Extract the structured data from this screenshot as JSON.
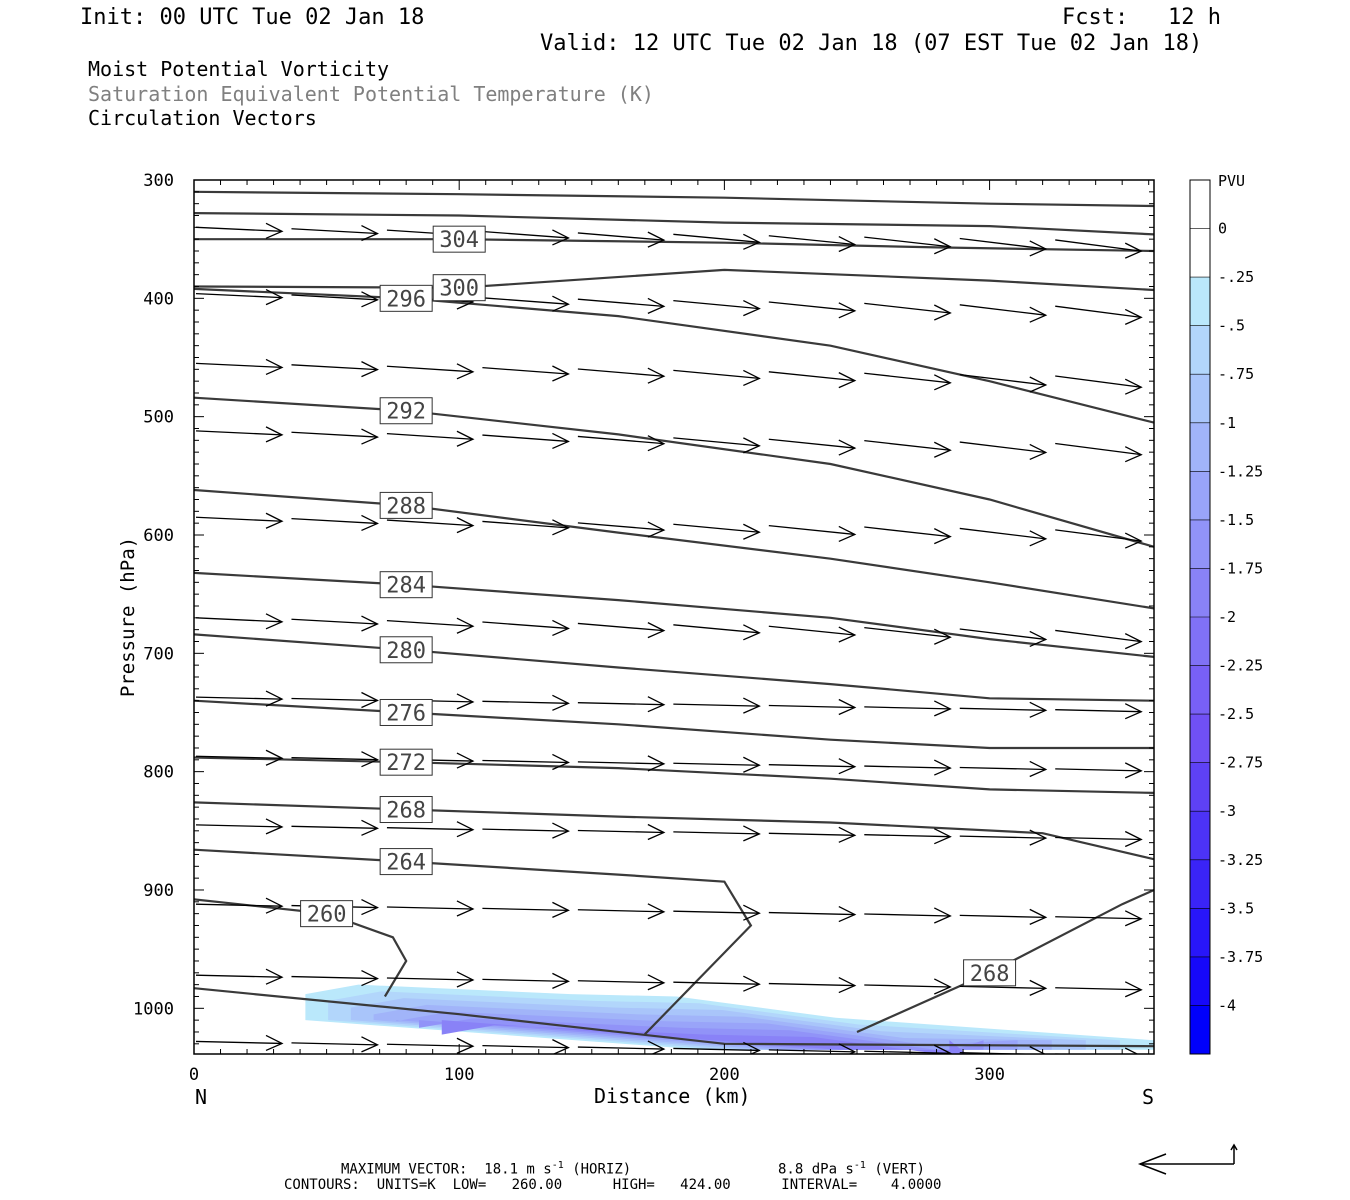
{
  "header": {
    "init": "Init: 00 UTC Tue 02 Jan 18",
    "fcst": "Fcst:   12 h",
    "valid": "Valid: 12 UTC Tue 02 Jan 18 (07 EST Tue 02 Jan 18)",
    "line1": "Moist Potential Vorticity",
    "line2": "Saturation Equivalent Potential Temperature (K)",
    "line3": "Circulation Vectors"
  },
  "footer": {
    "max_vector": "MAXIMUM VECTOR:  18.1 m s",
    "horiz": " (HORIZ)",
    "vert_val": "8.8 dPa s",
    "vert": " (VERT)",
    "sup": "-1",
    "contours": "CONTOURS:  UNITS=K  LOW=   260.00      HIGH=   424.00      INTERVAL=    4.0000"
  },
  "chart_data": {
    "type": "line",
    "xlabel": "Distance (km)",
    "ylabel": "Pressure (hPa)",
    "xlim": [
      0,
      362
    ],
    "ylim": [
      300,
      1038
    ],
    "x_ticks": [
      0,
      100,
      200,
      300
    ],
    "y_ticks": [
      300,
      400,
      500,
      600,
      700,
      800,
      900,
      1000
    ],
    "left_label": "N",
    "right_label": "S",
    "isentropes": [
      {
        "label": "",
        "points": [
          [
            0,
            310
          ],
          [
            100,
            312
          ],
          [
            200,
            315
          ],
          [
            300,
            320
          ],
          [
            362,
            322
          ]
        ]
      },
      {
        "label": "",
        "points": [
          [
            0,
            328
          ],
          [
            100,
            330
          ],
          [
            200,
            336
          ],
          [
            300,
            339
          ],
          [
            362,
            346
          ]
        ]
      },
      {
        "label": "304",
        "points": [
          [
            0,
            350
          ],
          [
            100,
            350
          ],
          [
            200,
            353
          ],
          [
            280,
            357
          ],
          [
            362,
            360
          ]
        ]
      },
      {
        "label": "300",
        "points": [
          [
            0,
            390
          ],
          [
            100,
            391
          ],
          [
            200,
            376
          ],
          [
            300,
            385
          ],
          [
            362,
            393
          ]
        ]
      },
      {
        "label": "296",
        "points": [
          [
            0,
            392
          ],
          [
            80,
            400
          ],
          [
            160,
            415
          ],
          [
            240,
            440
          ],
          [
            300,
            470
          ],
          [
            362,
            505
          ]
        ]
      },
      {
        "label": "292",
        "points": [
          [
            0,
            484
          ],
          [
            80,
            495
          ],
          [
            160,
            515
          ],
          [
            240,
            540
          ],
          [
            300,
            570
          ],
          [
            362,
            610
          ]
        ]
      },
      {
        "label": "288",
        "points": [
          [
            0,
            562
          ],
          [
            80,
            575
          ],
          [
            160,
            598
          ],
          [
            240,
            620
          ],
          [
            300,
            640
          ],
          [
            362,
            662
          ]
        ]
      },
      {
        "label": "284",
        "points": [
          [
            0,
            632
          ],
          [
            80,
            642
          ],
          [
            160,
            655
          ],
          [
            240,
            670
          ],
          [
            300,
            688
          ],
          [
            362,
            703
          ]
        ]
      },
      {
        "label": "280",
        "points": [
          [
            0,
            684
          ],
          [
            80,
            697
          ],
          [
            160,
            712
          ],
          [
            240,
            726
          ],
          [
            300,
            738
          ],
          [
            362,
            740
          ]
        ]
      },
      {
        "label": "276",
        "points": [
          [
            0,
            740
          ],
          [
            80,
            750
          ],
          [
            160,
            760
          ],
          [
            240,
            773
          ],
          [
            300,
            780
          ],
          [
            362,
            780
          ]
        ]
      },
      {
        "label": "272",
        "points": [
          [
            0,
            788
          ],
          [
            80,
            792
          ],
          [
            160,
            797
          ],
          [
            240,
            806
          ],
          [
            300,
            815
          ],
          [
            362,
            818
          ]
        ]
      },
      {
        "label": "268",
        "points": [
          [
            0,
            826
          ],
          [
            80,
            832
          ],
          [
            160,
            838
          ],
          [
            240,
            843
          ],
          [
            320,
            852
          ],
          [
            362,
            874
          ]
        ]
      },
      {
        "label": "264",
        "points": [
          [
            0,
            866
          ],
          [
            80,
            876
          ],
          [
            160,
            887
          ],
          [
            200,
            893
          ],
          [
            210,
            930
          ],
          [
            170,
            1022
          ]
        ]
      },
      {
        "label": "260",
        "points": [
          [
            0,
            908
          ],
          [
            50,
            920
          ],
          [
            75,
            940
          ],
          [
            80,
            960
          ],
          [
            72,
            990
          ]
        ]
      },
      {
        "label": "268",
        "points": [
          [
            250,
            1020
          ],
          [
            300,
            970
          ],
          [
            350,
            912
          ],
          [
            362,
            900
          ]
        ]
      },
      {
        "label": "",
        "points": [
          [
            0,
            983
          ],
          [
            100,
            1005
          ],
          [
            200,
            1030
          ],
          [
            362,
            1032
          ]
        ]
      }
    ],
    "vector_rows_hpa": [
      340,
      396,
      455,
      512,
      585,
      670,
      737,
      787,
      845,
      912,
      972,
      1028
    ],
    "vector_columns_km": [
      0,
      36,
      72,
      108,
      144,
      180,
      216,
      252,
      288,
      324,
      362
    ],
    "mpv_colorbar": {
      "title": "PVU",
      "labels": [
        "0",
        "-.25",
        "-.5",
        "-.75",
        "-1",
        "-1.25",
        "-1.5",
        "-1.75",
        "-2",
        "-2.25",
        "-2.5",
        "-2.75",
        "-3",
        "-3.25",
        "-3.5",
        "-3.75",
        "-4"
      ],
      "colors": [
        "#ffffff",
        "#ffffff",
        "#bae8fb",
        "#b2d6fb",
        "#a9c5fa",
        "#a1b4f9",
        "#99a4f9",
        "#9193f8",
        "#8982f7",
        "#8071f6",
        "#7860f6",
        "#7050f5",
        "#5e41f5",
        "#4c33f6",
        "#3a24f7",
        "#2816f9",
        "#1608fa",
        "#0000fc"
      ]
    },
    "mpv_region": {
      "x_km_range": [
        42,
        362
      ],
      "p_top_hpa": 980,
      "p_bottom_hpa": 1035
    }
  }
}
